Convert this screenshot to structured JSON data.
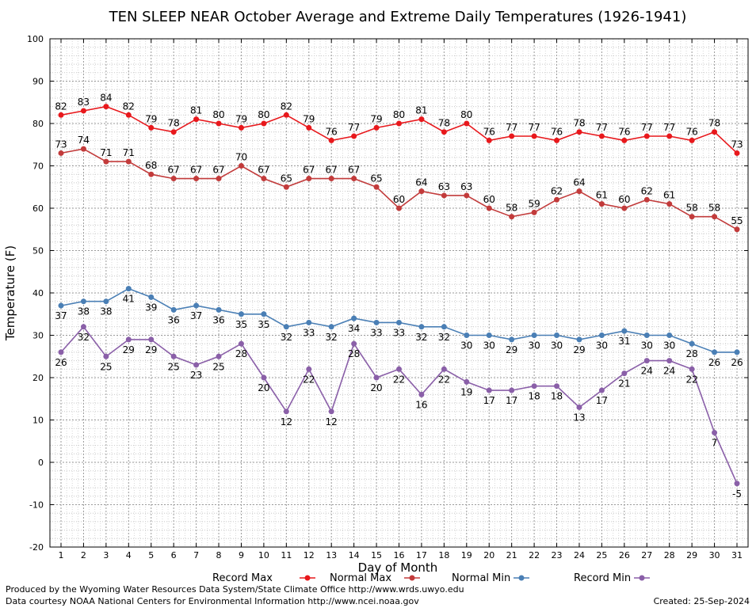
{
  "chart_data": {
    "type": "line",
    "title": "TEN SLEEP NEAR October Average and Extreme Daily Temperatures (1926-1941)",
    "xlabel": "Day of Month",
    "ylabel": "Temperature (F)",
    "xlim": [
      1,
      31
    ],
    "ylim": [
      -20,
      100
    ],
    "yticks": [
      -20,
      -10,
      0,
      10,
      20,
      30,
      40,
      50,
      60,
      70,
      80,
      90,
      100
    ],
    "x": [
      1,
      2,
      3,
      4,
      5,
      6,
      7,
      8,
      9,
      10,
      11,
      12,
      13,
      14,
      15,
      16,
      17,
      18,
      19,
      20,
      21,
      22,
      23,
      24,
      25,
      26,
      27,
      28,
      29,
      30,
      31
    ],
    "grid": true,
    "legend_position": "bottom",
    "series": [
      {
        "name": "Record Max",
        "color": "#e8181c",
        "values": [
          82,
          83,
          84,
          82,
          79,
          78,
          81,
          80,
          79,
          80,
          82,
          79,
          76,
          77,
          79,
          80,
          81,
          78,
          80,
          76,
          77,
          77,
          76,
          78,
          77,
          76,
          77,
          77,
          76,
          78,
          73
        ]
      },
      {
        "name": "Normal Max",
        "color": "#c23b3b",
        "values": [
          73,
          74,
          71,
          71,
          68,
          67,
          67,
          67,
          70,
          67,
          65,
          67,
          67,
          67,
          65,
          60,
          64,
          63,
          63,
          60,
          58,
          59,
          62,
          64,
          61,
          60,
          62,
          61,
          58,
          58,
          55
        ]
      },
      {
        "name": "Normal Min",
        "color": "#4a7fb5",
        "values": [
          37,
          38,
          38,
          41,
          39,
          36,
          37,
          36,
          35,
          35,
          32,
          33,
          32,
          34,
          33,
          33,
          32,
          32,
          30,
          30,
          29,
          30,
          30,
          29,
          30,
          31,
          30,
          30,
          28,
          26,
          26
        ]
      },
      {
        "name": "Record Min",
        "color": "#8a5fa8",
        "values": [
          26,
          32,
          25,
          29,
          29,
          25,
          23,
          25,
          28,
          20,
          12,
          22,
          12,
          28,
          20,
          22,
          16,
          22,
          19,
          17,
          17,
          18,
          18,
          13,
          17,
          21,
          24,
          24,
          22,
          7,
          -5
        ]
      }
    ]
  },
  "footer": {
    "produced_by": "Produced by the Wyoming Water Resources Data System/State Climate Office http://www.wrds.uwyo.edu",
    "courtesy": "Data courtesy NOAA National Centers for Environmental Information http://www.ncei.noaa.gov",
    "created": "Created:  25-Sep-2024"
  }
}
